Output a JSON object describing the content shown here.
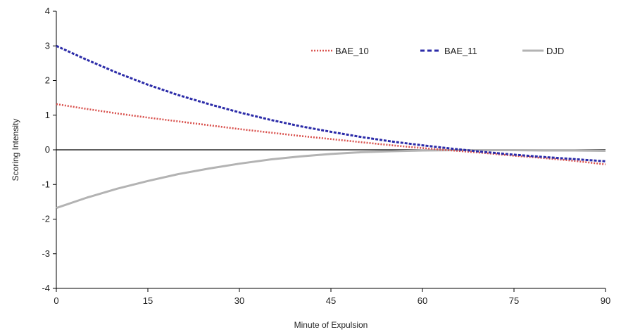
{
  "chart_data": {
    "type": "line",
    "title": "",
    "xlabel": "Minute of Expulsion",
    "ylabel": "Scoring Intensity",
    "xlim": [
      0,
      90
    ],
    "ylim": [
      -4,
      4
    ],
    "x_ticks": [
      "0",
      "15",
      "30",
      "45",
      "60",
      "75",
      "90"
    ],
    "y_ticks": [
      "-4",
      "-3",
      "-2",
      "-1",
      "0",
      "1",
      "2",
      "3",
      "4"
    ],
    "x_tick_values": [
      0,
      15,
      30,
      45,
      60,
      75,
      90
    ],
    "y_tick_values": [
      -4,
      -3,
      -2,
      -1,
      0,
      1,
      2,
      3,
      4
    ],
    "grid": false,
    "zero_line": true,
    "legend_position": "top-right",
    "x": [
      0,
      5,
      10,
      15,
      20,
      25,
      30,
      35,
      40,
      45,
      50,
      55,
      60,
      65,
      70,
      75,
      80,
      85,
      90
    ],
    "series": [
      {
        "name": "BAE_10",
        "color": "#d9534f",
        "style": "dotted",
        "values": [
          1.32,
          1.18,
          1.05,
          0.93,
          0.82,
          0.71,
          0.6,
          0.5,
          0.4,
          0.31,
          0.22,
          0.13,
          0.05,
          -0.02,
          -0.09,
          -0.17,
          -0.24,
          -0.32,
          -0.42
        ]
      },
      {
        "name": "BAE_11",
        "color": "#2b2ba8",
        "style": "dashed",
        "values": [
          3.0,
          2.6,
          2.22,
          1.88,
          1.58,
          1.32,
          1.08,
          0.87,
          0.68,
          0.52,
          0.37,
          0.24,
          0.13,
          0.03,
          -0.06,
          -0.14,
          -0.21,
          -0.27,
          -0.33
        ]
      },
      {
        "name": "DJD",
        "color": "#b3b3b3",
        "style": "solid",
        "values": [
          -1.68,
          -1.38,
          -1.12,
          -0.9,
          -0.7,
          -0.54,
          -0.4,
          -0.28,
          -0.19,
          -0.12,
          -0.07,
          -0.04,
          -0.02,
          -0.01,
          -0.01,
          -0.01,
          -0.02,
          -0.02,
          -0.03
        ]
      }
    ]
  }
}
